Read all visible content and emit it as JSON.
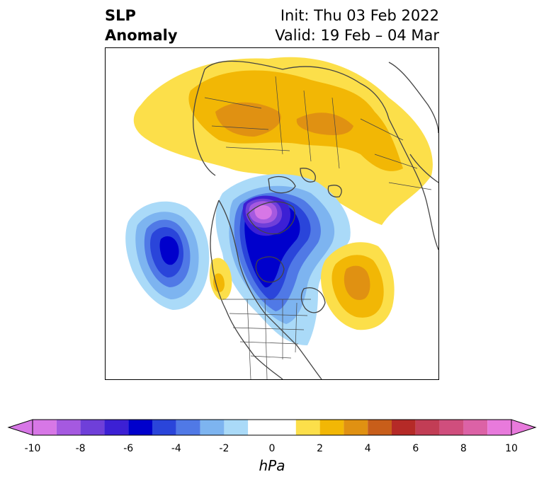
{
  "title": {
    "line1": "SLP",
    "line2": "Anomaly"
  },
  "subtitle": {
    "init": "Init: Thu 03 Feb 2022",
    "valid": "Valid: 19 Feb – 04 Mar"
  },
  "colorbar": {
    "unit": "hPa",
    "ticks": [
      "-10",
      "-8",
      "-6",
      "-4",
      "-2",
      "0",
      "2",
      "4",
      "6",
      "8",
      "10"
    ],
    "bins": [
      {
        "range": "-10 to -9",
        "color": "#d777e6"
      },
      {
        "range": "-9 to -8",
        "color": "#a559e0"
      },
      {
        "range": "-8 to -7",
        "color": "#6f3fd9"
      },
      {
        "range": "-7 to -6",
        "color": "#3c20d4"
      },
      {
        "range": "-6 to -5",
        "color": "#0000cc"
      },
      {
        "range": "-5 to -4",
        "color": "#2a45da"
      },
      {
        "range": "-4 to -3",
        "color": "#5079e6"
      },
      {
        "range": "-3 to -2",
        "color": "#7db4f0"
      },
      {
        "range": "-2 to -1",
        "color": "#aadaf8"
      },
      {
        "range": "-1 to 1",
        "color": "#ffffff"
      },
      {
        "range": "1 to 2",
        "color": "#fcdf4a"
      },
      {
        "range": "2 to 3",
        "color": "#f2b705"
      },
      {
        "range": "3 to 4",
        "color": "#e09112"
      },
      {
        "range": "4 to 5",
        "color": "#c85e1a"
      },
      {
        "range": "5 to 6",
        "color": "#b52a27"
      },
      {
        "range": "6 to 7",
        "color": "#c23d55"
      },
      {
        "range": "7 to 8",
        "color": "#d04e7d"
      },
      {
        "range": "8 to 9",
        "color": "#dc62a6"
      },
      {
        "range": "9 to 10",
        "color": "#e87adc"
      }
    ],
    "extend_low_color": "#d777e6",
    "extend_high_color": "#e87adc"
  },
  "map": {
    "features": [
      {
        "name": "positive-anomaly-eurasia",
        "peak_hPa": 4
      },
      {
        "name": "negative-anomaly-arctic-canada",
        "peak_hPa": -9
      },
      {
        "name": "negative-anomaly-north-pacific",
        "peak_hPa": -6
      },
      {
        "name": "positive-anomaly-north-atlantic",
        "peak_hPa": 4
      },
      {
        "name": "positive-anomaly-alaska-coast",
        "peak_hPa": 2
      }
    ]
  }
}
